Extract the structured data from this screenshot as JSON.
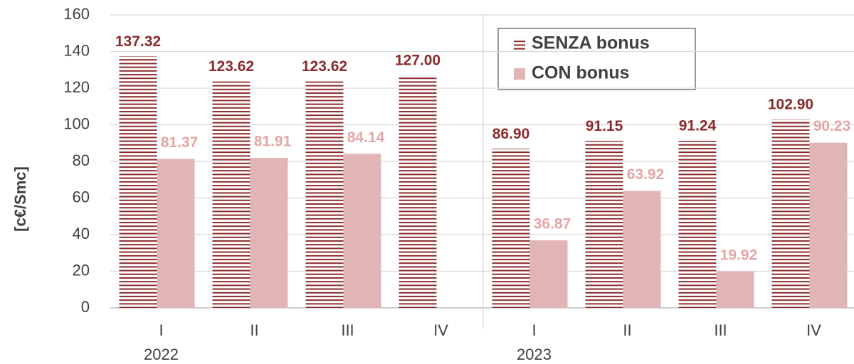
{
  "chart_data": {
    "type": "bar",
    "y_label": "[c€/Smc]",
    "categories": [
      "I",
      "II",
      "III",
      "IV",
      "I",
      "II",
      "III",
      "IV"
    ],
    "group_labels": [
      "2022",
      null,
      null,
      null,
      "2023",
      null,
      null,
      null
    ],
    "series": [
      {
        "name": "SENZA bonus",
        "color": "#8b2b2b",
        "pattern": "horizontal-hatch",
        "values": [
          137.32,
          123.62,
          123.62,
          127.0,
          86.9,
          91.15,
          91.24,
          102.9
        ],
        "value_labels": [
          "137.32",
          "123.62",
          "123.62",
          "127.00",
          "86.90",
          "91.15",
          "91.24",
          "102.90"
        ]
      },
      {
        "name": "CON bonus",
        "color": "#e1b5b5",
        "label_color": "#e6a5a5",
        "values": [
          81.37,
          81.91,
          84.14,
          null,
          36.87,
          63.92,
          19.92,
          90.23
        ],
        "value_labels": [
          "81.37",
          "81.91",
          "84.14",
          null,
          "36.87",
          "63.92",
          "19.92",
          "90.23"
        ]
      }
    ],
    "ylim": [
      0,
      160
    ],
    "yticks": [
      0,
      20,
      40,
      60,
      80,
      100,
      120,
      140,
      160
    ],
    "grid": true,
    "legend": "top-center"
  }
}
